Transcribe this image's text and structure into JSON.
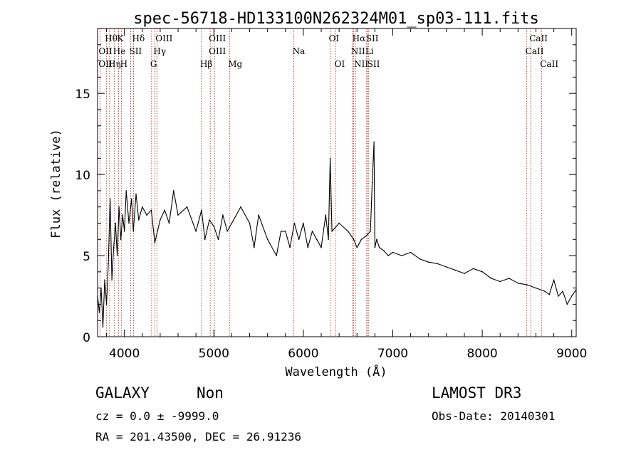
{
  "chart_data": {
    "type": "line",
    "title": "spec-56718-HD133100N262324M01_sp03-111.fits",
    "xlabel": "Wavelength (Å)",
    "ylabel": "Flux (relative)",
    "xlim": [
      3700,
      9050
    ],
    "ylim": [
      0,
      19
    ],
    "xticks": [
      4000,
      5000,
      6000,
      7000,
      8000,
      9000
    ],
    "xtick_labels": [
      "4000",
      "5000",
      "6000",
      "7000",
      "8000",
      "9000"
    ],
    "yticks": [
      0,
      5,
      10,
      15
    ],
    "ytick_labels": [
      "0",
      "5",
      "10",
      "15"
    ],
    "grid": false,
    "series": [
      {
        "name": "spectrum",
        "color": "#000000",
        "x": [
          3700,
          3720,
          3740,
          3760,
          3780,
          3800,
          3820,
          3840,
          3860,
          3880,
          3900,
          3920,
          3940,
          3960,
          3980,
          4000,
          4020,
          4050,
          4080,
          4100,
          4130,
          4160,
          4200,
          4250,
          4300,
          4340,
          4400,
          4450,
          4500,
          4550,
          4600,
          4700,
          4800,
          4862,
          4900,
          4950,
          5000,
          5050,
          5100,
          5150,
          5200,
          5300,
          5400,
          5450,
          5500,
          5600,
          5700,
          5750,
          5800,
          5850,
          5900,
          5950,
          6000,
          6050,
          6100,
          6150,
          6200,
          6250,
          6280,
          6300,
          6320,
          6400,
          6500,
          6563,
          6600,
          6650,
          6700,
          6750,
          6770,
          6790,
          6800,
          6820,
          6850,
          6900,
          6950,
          7000,
          7100,
          7200,
          7300,
          7400,
          7500,
          7600,
          7700,
          7800,
          7900,
          8000,
          8100,
          8200,
          8300,
          8400,
          8500,
          8600,
          8700,
          8750,
          8800,
          8850,
          8900,
          8950,
          9000,
          9050
        ],
        "y": [
          2.5,
          1.5,
          3.0,
          0.6,
          3.5,
          2.0,
          4.5,
          8.5,
          3.5,
          5.5,
          7.0,
          5.0,
          8.0,
          6.0,
          7.5,
          6.5,
          9.0,
          7.0,
          8.5,
          6.5,
          8.8,
          7.2,
          8.0,
          7.5,
          7.8,
          5.8,
          7.2,
          7.8,
          7.0,
          9.0,
          7.5,
          8.0,
          6.5,
          7.8,
          6.0,
          7.2,
          6.8,
          6.0,
          7.5,
          6.5,
          7.0,
          8.0,
          7.0,
          5.5,
          7.5,
          6.0,
          5.0,
          6.5,
          6.5,
          5.5,
          7.0,
          6.0,
          7.0,
          5.5,
          6.5,
          6.0,
          5.5,
          7.5,
          6.0,
          11.0,
          6.5,
          7.0,
          6.5,
          6.0,
          5.5,
          6.0,
          6.2,
          6.5,
          9.5,
          12.0,
          5.5,
          6.0,
          5.5,
          5.3,
          5.0,
          5.2,
          5.0,
          5.2,
          4.8,
          4.6,
          4.5,
          4.3,
          4.1,
          3.9,
          4.2,
          4.0,
          3.6,
          3.4,
          3.6,
          3.3,
          3.2,
          3.0,
          2.8,
          2.6,
          3.5,
          2.5,
          2.8,
          2.0,
          2.5,
          2.9
        ]
      }
    ],
    "line_markers": [
      {
        "label": "OII",
        "x": 3727,
        "row": 2
      },
      {
        "label": "OII",
        "x": 3727,
        "row": 3
      },
      {
        "label": "Hθ",
        "x": 3798,
        "row": 1
      },
      {
        "label": "Hη",
        "x": 3835,
        "row": 3
      },
      {
        "label": "He",
        "x": 3889,
        "row": 2
      },
      {
        "label": "K",
        "x": 3934,
        "row": 1
      },
      {
        "label": "H",
        "x": 3968,
        "row": 3
      },
      {
        "label": "Hδ",
        "x": 4102,
        "row": 1
      },
      {
        "label": "SII",
        "x": 4070,
        "row": 2
      },
      {
        "label": "OIII",
        "x": 4363,
        "row": 1
      },
      {
        "label": "Hγ",
        "x": 4340,
        "row": 2
      },
      {
        "label": "G",
        "x": 4304,
        "row": 3
      },
      {
        "label": "OIII",
        "x": 4959,
        "row": 1
      },
      {
        "label": "OIII",
        "x": 4959,
        "row": 2
      },
      {
        "label": "Hβ",
        "x": 4862,
        "row": 3
      },
      {
        "label": "Mg",
        "x": 5175,
        "row": 3
      },
      {
        "label": "Na",
        "x": 5894,
        "row": 2
      },
      {
        "label": "OI",
        "x": 6300,
        "row": 1
      },
      {
        "label": "OI",
        "x": 6364,
        "row": 3
      },
      {
        "label": "Hα",
        "x": 6563,
        "row": 1
      },
      {
        "label": "SII",
        "x": 6716,
        "row": 1
      },
      {
        "label": "NII",
        "x": 6548,
        "row": 2
      },
      {
        "label": "Li",
        "x": 6708,
        "row": 2
      },
      {
        "label": "NII",
        "x": 6583,
        "row": 3
      },
      {
        "label": "SII",
        "x": 6731,
        "row": 3
      },
      {
        "label": "CaII",
        "x": 8542,
        "row": 1
      },
      {
        "label": "CaII",
        "x": 8498,
        "row": 2
      },
      {
        "label": "CaII",
        "x": 8662,
        "row": 3
      }
    ],
    "marker_lines_x": [
      3727,
      3798,
      3835,
      3889,
      3934,
      3968,
      4070,
      4102,
      4304,
      4340,
      4363,
      4862,
      4959,
      5007,
      5175,
      5894,
      6300,
      6364,
      6548,
      6563,
      6583,
      6708,
      6716,
      6731,
      8498,
      8542,
      8662
    ],
    "marker_line_color": "#b22222"
  },
  "footer": {
    "class": "GALAXY",
    "subclass": "Non",
    "survey": "LAMOST DR3",
    "redshift": "cz = 0.0 ± -9999.0",
    "obs_date": "Obs-Date: 20140301",
    "coords": "RA = 201.43500, DEC =  26.91236"
  }
}
